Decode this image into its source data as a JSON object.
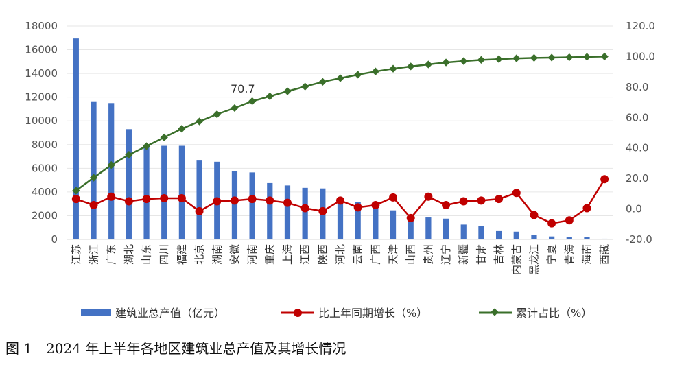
{
  "caption": "图 1　2024 年上半年各地区建筑业总产值及其增长情况",
  "chart_data": {
    "type": "bar+line",
    "categories": [
      "江苏",
      "浙江",
      "广东",
      "湖北",
      "山东",
      "四川",
      "福建",
      "北京",
      "湖南",
      "安徽",
      "河南",
      "重庆",
      "上海",
      "江西",
      "陕西",
      "河北",
      "云南",
      "广西",
      "天津",
      "山西",
      "贵州",
      "辽宁",
      "新疆",
      "甘肃",
      "吉林",
      "内蒙古",
      "黑龙江",
      "宁夏",
      "青海",
      "海南",
      "西藏"
    ],
    "left_axis": {
      "min": 0,
      "max": 18000,
      "step": 2000,
      "ticks": [
        "0",
        "2000",
        "4000",
        "6000",
        "8000",
        "10000",
        "12000",
        "14000",
        "16000",
        "18000"
      ]
    },
    "right_axis": {
      "min": -20,
      "max": 120,
      "step": 20,
      "ticks": [
        "-20.0",
        "0.0",
        "20.0",
        "40.0",
        "60.0",
        "80.0",
        "100.0",
        "120.0"
      ]
    },
    "series": [
      {
        "name": "建筑业总产值（亿元）",
        "type": "bar",
        "axis": "left",
        "color": "#4472C4",
        "values": [
          16950,
          11650,
          11500,
          9300,
          7950,
          7900,
          7900,
          6650,
          6550,
          5750,
          5650,
          4750,
          4550,
          4350,
          4300,
          3350,
          3150,
          2950,
          2450,
          2050,
          1850,
          1750,
          1250,
          1100,
          700,
          650,
          400,
          250,
          200,
          180,
          60
        ]
      },
      {
        "name": "比上年同期增长（%）",
        "type": "line",
        "axis": "right",
        "color": "#C00000",
        "values": [
          6.5,
          2.5,
          8.0,
          5.0,
          6.5,
          7.0,
          7.0,
          -1.5,
          5.0,
          5.5,
          6.5,
          5.5,
          4.0,
          0.5,
          -1.5,
          5.5,
          1.0,
          2.5,
          7.5,
          -6.0,
          8.0,
          2.5,
          5.0,
          5.5,
          6.5,
          10.5,
          -4.0,
          -9.5,
          -7.5,
          0.5,
          19.5
        ]
      },
      {
        "name": "累计占比（%）",
        "type": "line",
        "axis": "right",
        "color": "#3A6F2A",
        "values": [
          12.0,
          20.5,
          28.8,
          35.5,
          41.2,
          46.9,
          52.6,
          57.4,
          62.1,
          66.2,
          70.7,
          73.9,
          77.2,
          80.3,
          83.4,
          85.8,
          88.1,
          90.2,
          92.0,
          93.5,
          94.8,
          96.1,
          97.0,
          97.8,
          98.3,
          98.8,
          99.1,
          99.3,
          99.5,
          99.8,
          100.0
        ]
      }
    ],
    "annotation": "70.7",
    "legend_position": "bottom"
  }
}
